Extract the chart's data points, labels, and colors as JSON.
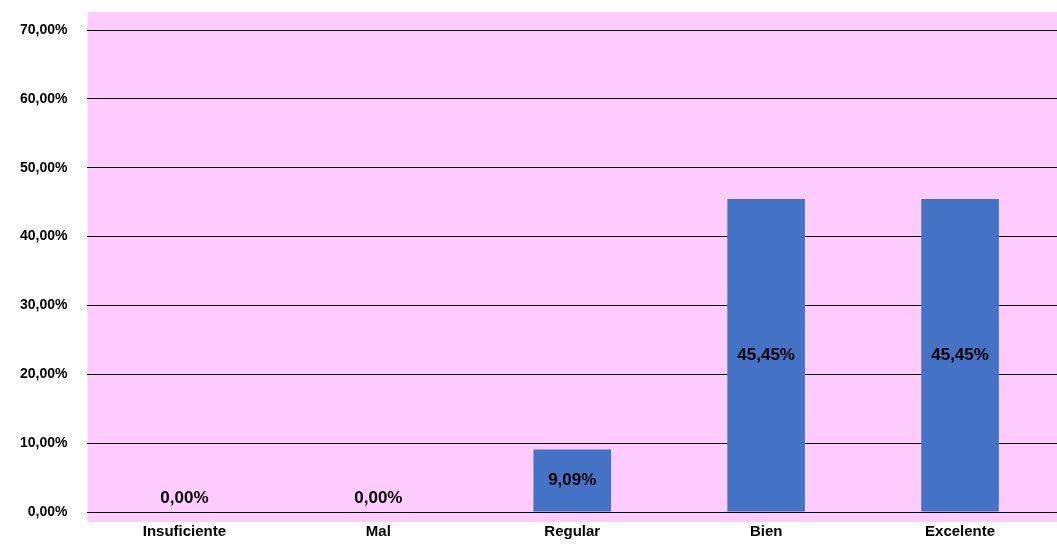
{
  "chart_data": {
    "type": "bar",
    "categories": [
      "Insuficiente",
      "Mal",
      "Regular",
      "Bien",
      "Excelente"
    ],
    "values": [
      0,
      0,
      9.09,
      45.45,
      45.45
    ],
    "value_labels": [
      "0,00%",
      "0,00%",
      "9,09%",
      "45,45%",
      "45,45%"
    ],
    "color": "#4472c4",
    "ylim": [
      0,
      70
    ],
    "yticks": [
      {
        "value": 0,
        "label": "0,00%"
      },
      {
        "value": 10,
        "label": "10,00%"
      },
      {
        "value": 20,
        "label": "20,00%"
      },
      {
        "value": 30,
        "label": "30,00%"
      },
      {
        "value": 40,
        "label": "40,00%"
      },
      {
        "value": 50,
        "label": "50,00%"
      },
      {
        "value": 60,
        "label": "60,00%"
      },
      {
        "value": 70,
        "label": "70,00%"
      }
    ],
    "grid": "y",
    "legend": false
  }
}
